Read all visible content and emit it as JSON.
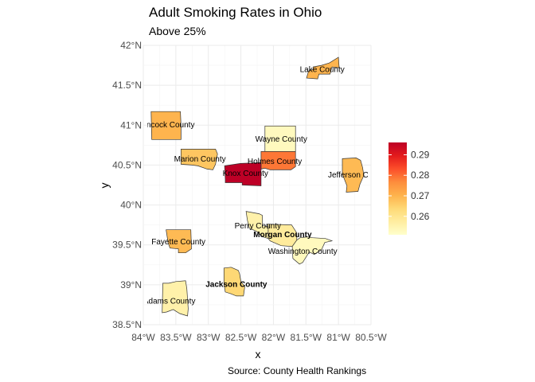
{
  "title": "Adult Smoking Rates in Ohio",
  "subtitle": "Above 25%",
  "caption": "Source: County Health Rankings",
  "chart_data": {
    "type": "map",
    "xlabel": "x",
    "ylabel": "y",
    "xlim": [
      -84.0,
      -80.5
    ],
    "ylim": [
      38.5,
      42.0
    ],
    "x_ticks": [
      {
        "value": -84.0,
        "label": "84°W"
      },
      {
        "value": -83.5,
        "label": "83.5°W"
      },
      {
        "value": -83.0,
        "label": "83°W"
      },
      {
        "value": -82.5,
        "label": "82.5°W"
      },
      {
        "value": -82.0,
        "label": "82°W"
      },
      {
        "value": -81.5,
        "label": "81.5°W"
      },
      {
        "value": -81.0,
        "label": "81°W"
      },
      {
        "value": -80.5,
        "label": "80.5°W"
      }
    ],
    "y_ticks": [
      {
        "value": 42.0,
        "label": "42°N"
      },
      {
        "value": 41.5,
        "label": "41.5°N"
      },
      {
        "value": 41.0,
        "label": "41°N"
      },
      {
        "value": 40.5,
        "label": "40.5°N"
      },
      {
        "value": 40.0,
        "label": "40°N"
      },
      {
        "value": 39.5,
        "label": "39.5°N"
      },
      {
        "value": 39.0,
        "label": "39°N"
      },
      {
        "value": 38.5,
        "label": "38.5°N"
      }
    ],
    "grid": true,
    "fill_scale": {
      "name": "",
      "palette": "YlOrRd",
      "min": 0.251,
      "max": 0.296,
      "colors": [
        "#ffffcc",
        "#ffeda0",
        "#fed976",
        "#feb24c",
        "#fd8d3c",
        "#fc4e2a",
        "#e31a1c",
        "#bd0026"
      ],
      "breaks": [
        {
          "value": 0.26,
          "label": "0.26"
        },
        {
          "value": 0.27,
          "label": "0.27"
        },
        {
          "value": 0.28,
          "label": "0.28"
        },
        {
          "value": 0.29,
          "label": "0.29"
        }
      ],
      "legend_position": "right"
    },
    "counties": [
      {
        "name": "Lake County",
        "rate": 0.27,
        "lon": -81.25,
        "lat": 41.7,
        "polygon": [
          [
            -81.49,
            41.59
          ],
          [
            -81.46,
            41.68
          ],
          [
            -81.39,
            41.7
          ],
          [
            -81.39,
            41.73
          ],
          [
            -81.26,
            41.75
          ],
          [
            -81.14,
            41.78
          ],
          [
            -81.0,
            41.85
          ],
          [
            -80.99,
            41.72
          ],
          [
            -81.1,
            41.73
          ],
          [
            -81.13,
            41.64
          ],
          [
            -81.3,
            41.64
          ],
          [
            -81.32,
            41.58
          ],
          [
            -81.49,
            41.59
          ]
        ]
      },
      {
        "name": "Hancock County",
        "rate": 0.27,
        "lon": -83.55,
        "lat": 41.01,
        "polygon": [
          [
            -83.88,
            41.17
          ],
          [
            -83.43,
            41.17
          ],
          [
            -83.42,
            40.99
          ],
          [
            -83.42,
            40.82
          ],
          [
            -83.87,
            40.82
          ],
          [
            -83.88,
            41.17
          ]
        ],
        "label_lon": -83.66
      },
      {
        "name": "Wayne County",
        "rate": 0.253,
        "lon": -81.88,
        "lat": 40.83,
        "polygon": [
          [
            -82.13,
            40.99
          ],
          [
            -81.66,
            40.99
          ],
          [
            -81.66,
            40.67
          ],
          [
            -82.13,
            40.67
          ],
          [
            -82.13,
            40.99
          ]
        ]
      },
      {
        "name": "Marion County",
        "rate": 0.267,
        "lon": -83.13,
        "lat": 40.58,
        "polygon": [
          [
            -83.42,
            40.7
          ],
          [
            -82.89,
            40.7
          ],
          [
            -82.86,
            40.64
          ],
          [
            -82.89,
            40.51
          ],
          [
            -82.93,
            40.44
          ],
          [
            -83.02,
            40.45
          ],
          [
            -83.16,
            40.49
          ],
          [
            -83.25,
            40.5
          ],
          [
            -83.42,
            40.51
          ],
          [
            -83.42,
            40.7
          ]
        ]
      },
      {
        "name": "Holmes County",
        "rate": 0.279,
        "lon": -81.93,
        "lat": 40.55,
        "polygon": [
          [
            -82.19,
            40.67
          ],
          [
            -81.66,
            40.67
          ],
          [
            -81.66,
            40.48
          ],
          [
            -81.73,
            40.44
          ],
          [
            -82.05,
            40.44
          ],
          [
            -82.13,
            40.46
          ],
          [
            -82.19,
            40.45
          ],
          [
            -82.19,
            40.67
          ]
        ],
        "label_lon": -81.98
      },
      {
        "name": "Knox County",
        "rate": 0.296,
        "lon": -82.42,
        "lat": 40.4,
        "polygon": [
          [
            -82.75,
            40.49
          ],
          [
            -82.51,
            40.52
          ],
          [
            -82.22,
            40.53
          ],
          [
            -82.19,
            40.53
          ],
          [
            -82.19,
            40.24
          ],
          [
            -82.48,
            40.25
          ],
          [
            -82.48,
            40.28
          ],
          [
            -82.74,
            40.28
          ],
          [
            -82.74,
            40.32
          ],
          [
            -82.75,
            40.49
          ]
        ],
        "label_lon": -82.43
      },
      {
        "name": "Jefferson County",
        "rate": 0.269,
        "lon": -80.76,
        "lat": 40.38,
        "polygon": [
          [
            -80.94,
            40.58
          ],
          [
            -80.73,
            40.59
          ],
          [
            -80.66,
            40.56
          ],
          [
            -80.63,
            40.47
          ],
          [
            -80.61,
            40.37
          ],
          [
            -80.67,
            40.26
          ],
          [
            -80.7,
            40.17
          ],
          [
            -80.88,
            40.16
          ],
          [
            -80.87,
            40.24
          ],
          [
            -80.94,
            40.39
          ],
          [
            -80.94,
            40.58
          ]
        ],
        "label_lon": -80.7
      },
      {
        "name": "Perry County",
        "rate": 0.256,
        "lon": -82.24,
        "lat": 39.74,
        "polygon": [
          [
            -82.42,
            39.92
          ],
          [
            -82.22,
            39.89
          ],
          [
            -82.17,
            39.87
          ],
          [
            -82.17,
            39.74
          ],
          [
            -82.08,
            39.73
          ],
          [
            -82.08,
            39.58
          ],
          [
            -82.16,
            39.6
          ],
          [
            -82.23,
            39.65
          ],
          [
            -82.26,
            39.67
          ],
          [
            -82.37,
            39.71
          ],
          [
            -82.4,
            39.81
          ],
          [
            -82.42,
            39.92
          ]
        ]
      },
      {
        "name": "Morgan County",
        "rate": 0.258,
        "lon": -81.86,
        "lat": 39.63,
        "polygon": [
          [
            -82.1,
            39.76
          ],
          [
            -81.72,
            39.75
          ],
          [
            -81.64,
            39.65
          ],
          [
            -81.64,
            39.56
          ],
          [
            -81.71,
            39.48
          ],
          [
            -81.88,
            39.49
          ],
          [
            -82.05,
            39.55
          ],
          [
            -82.08,
            39.58
          ],
          [
            -82.08,
            39.74
          ],
          [
            -82.1,
            39.76
          ]
        ]
      },
      {
        "name": "Washington County",
        "rate": 0.253,
        "lon": -81.5,
        "lat": 39.44,
        "polygon": [
          [
            -81.71,
            39.48
          ],
          [
            -81.64,
            39.56
          ],
          [
            -81.59,
            39.59
          ],
          [
            -81.47,
            39.6
          ],
          [
            -81.4,
            39.59
          ],
          [
            -81.2,
            39.58
          ],
          [
            -81.1,
            39.55
          ],
          [
            -81.21,
            39.53
          ],
          [
            -81.26,
            39.44
          ],
          [
            -81.37,
            39.38
          ],
          [
            -81.45,
            39.41
          ],
          [
            -81.55,
            39.28
          ],
          [
            -81.6,
            39.26
          ],
          [
            -81.7,
            39.33
          ],
          [
            -81.71,
            39.48
          ]
        ],
        "label_lon": -81.55,
        "label_lat": 39.42
      },
      {
        "name": "Fayette County",
        "rate": 0.269,
        "lon": -83.45,
        "lat": 39.56,
        "polygon": [
          [
            -83.65,
            39.69
          ],
          [
            -83.27,
            39.69
          ],
          [
            -83.26,
            39.45
          ],
          [
            -83.35,
            39.4
          ],
          [
            -83.46,
            39.4
          ],
          [
            -83.46,
            39.45
          ],
          [
            -83.59,
            39.46
          ],
          [
            -83.62,
            39.53
          ],
          [
            -83.65,
            39.69
          ]
        ],
        "label_lon": -83.46,
        "label_lat": 39.54
      },
      {
        "name": "Jackson County",
        "rate": 0.264,
        "lon": -82.62,
        "lat": 39.02,
        "polygon": [
          [
            -82.76,
            39.21
          ],
          [
            -82.65,
            39.22
          ],
          [
            -82.54,
            39.18
          ],
          [
            -82.52,
            39.14
          ],
          [
            -82.5,
            39.04
          ],
          [
            -82.44,
            38.98
          ],
          [
            -82.46,
            38.86
          ],
          [
            -82.57,
            38.86
          ],
          [
            -82.66,
            38.89
          ],
          [
            -82.74,
            38.91
          ],
          [
            -82.76,
            39.01
          ],
          [
            -82.76,
            39.21
          ]
        ],
        "label_lon": -82.57,
        "label_lat": 39.01
      },
      {
        "name": "Adams County",
        "rate": 0.256,
        "lon": -83.47,
        "lat": 38.82,
        "polygon": [
          [
            -83.7,
            39.02
          ],
          [
            -83.61,
            39.02
          ],
          [
            -83.5,
            39.04
          ],
          [
            -83.35,
            39.05
          ],
          [
            -83.33,
            38.95
          ],
          [
            -83.31,
            38.7
          ],
          [
            -83.32,
            38.61
          ],
          [
            -83.44,
            38.64
          ],
          [
            -83.54,
            38.69
          ],
          [
            -83.64,
            38.66
          ],
          [
            -83.71,
            38.65
          ],
          [
            -83.7,
            39.02
          ]
        ],
        "label_lon": -83.6,
        "label_lat": 38.8
      }
    ]
  }
}
